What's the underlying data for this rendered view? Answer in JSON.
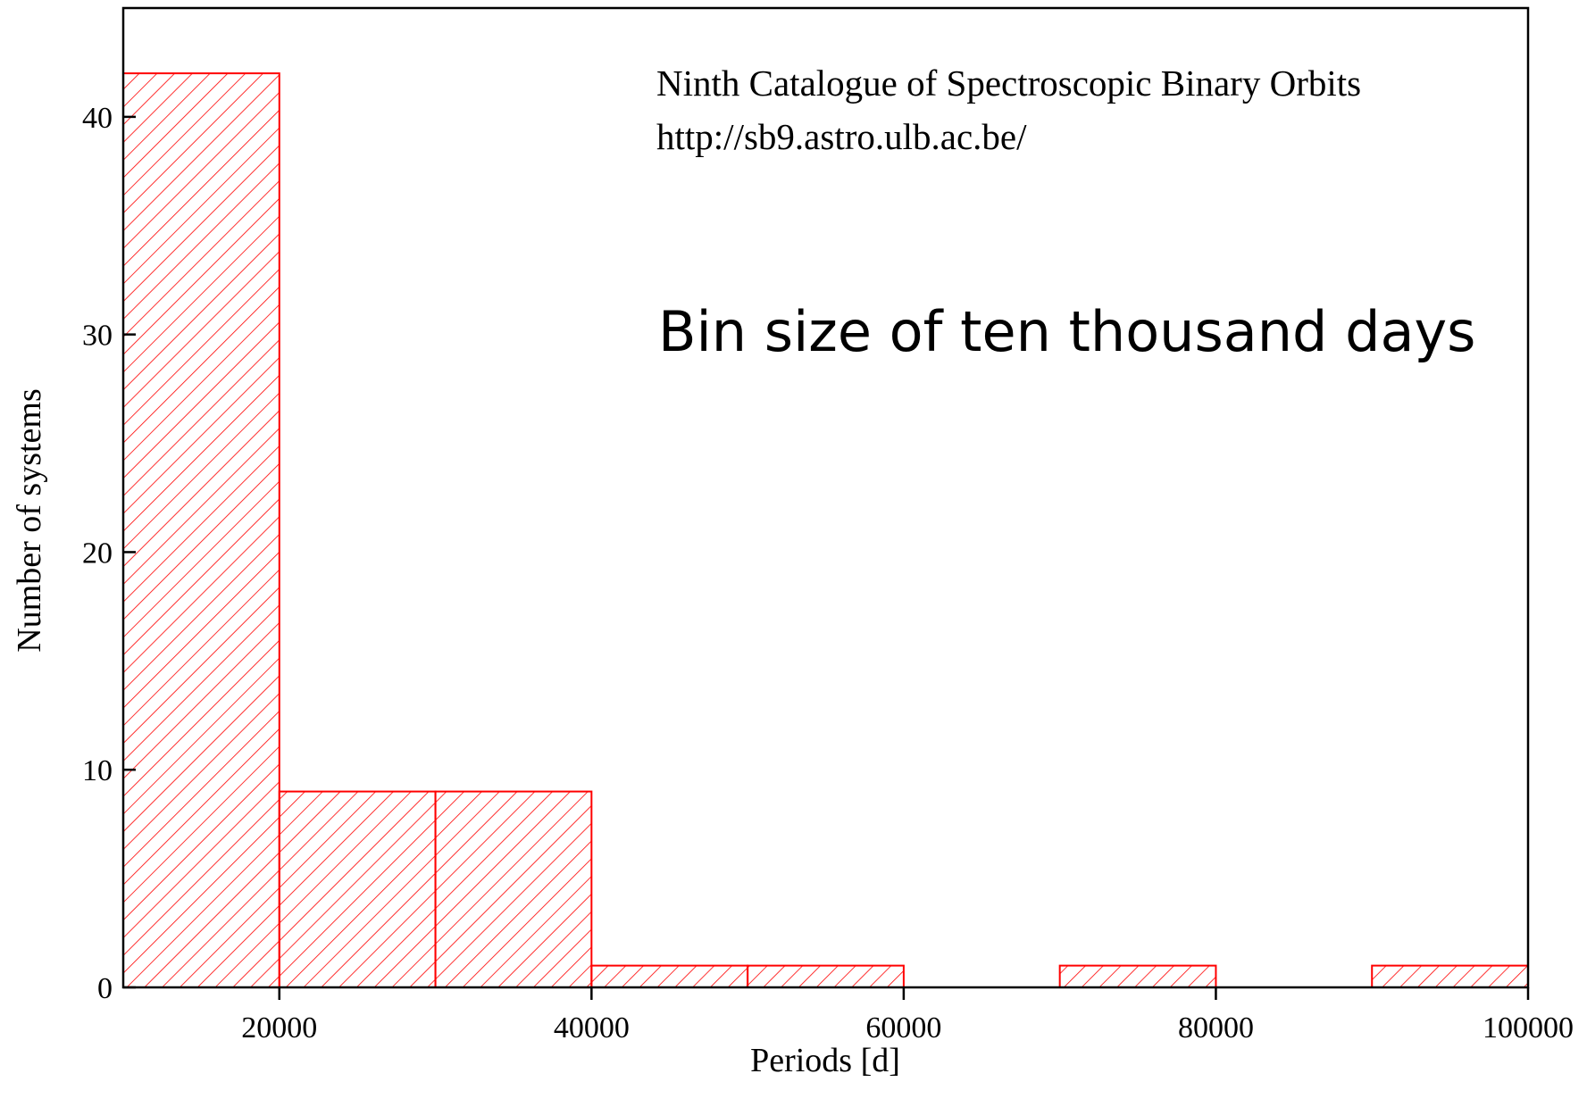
{
  "chart_data": {
    "type": "histogram",
    "xlabel": "Periods [d]",
    "ylabel": "Number of systems",
    "annotations": [
      "Ninth Catalogue of Spectroscopic Binary Orbits",
      "http://sb9.astro.ulb.ac.be/",
      "Bin size of ten thousand days"
    ],
    "bins": [
      10000,
      20000,
      30000,
      40000,
      50000,
      60000,
      70000,
      80000,
      90000,
      100000
    ],
    "values": [
      42,
      9,
      9,
      1,
      1,
      0,
      1,
      0,
      1
    ],
    "color": "#ff0000",
    "xlim": [
      10000,
      100000
    ],
    "ylim": [
      0,
      45
    ],
    "xticks": [
      20000,
      40000,
      60000,
      80000,
      100000
    ],
    "yticks": [
      0,
      10,
      20,
      30,
      40
    ]
  }
}
